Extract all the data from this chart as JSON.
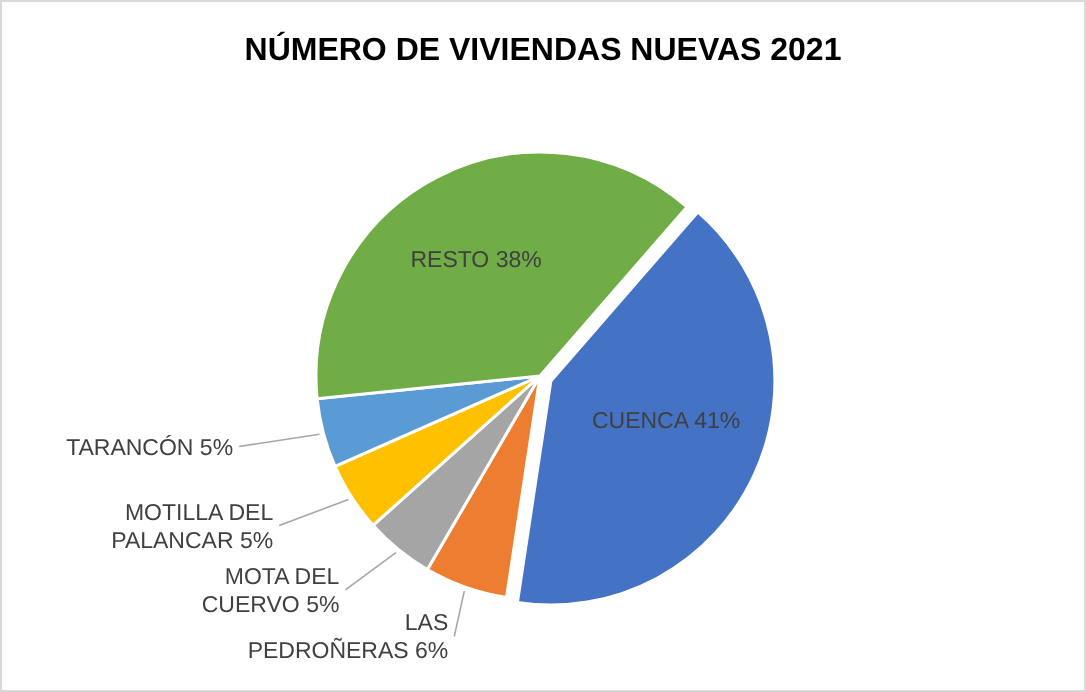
{
  "chart_data": {
    "type": "pie",
    "title": "NÚMERO DE VIVIENDAS NUEVAS 2021",
    "categories": [
      "CUENCA",
      "LAS PEDROÑERAS",
      "MOTA DEL CUERVO",
      "MOTILLA DEL PALANCAR",
      "TARANCÓN",
      "RESTO"
    ],
    "values": [
      41,
      6,
      5,
      5,
      5,
      38
    ],
    "value_labels": [
      "41%",
      "6%",
      "5%",
      "5%",
      "5%",
      "38%"
    ],
    "colors": [
      "#4472c4",
      "#ed7d31",
      "#a5a5a5",
      "#ffc000",
      "#5b9bd5",
      "#70ad47"
    ]
  }
}
